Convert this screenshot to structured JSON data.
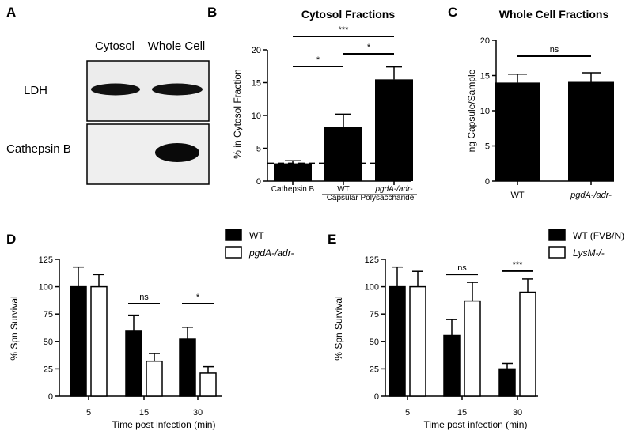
{
  "panels": {
    "A": "A",
    "B": "B",
    "C": "C",
    "D": "D",
    "E": "E"
  },
  "blot": {
    "columns": [
      "Cytosol",
      "Whole Cell"
    ],
    "rows": [
      "LDH",
      "Cathepsin B"
    ]
  },
  "chart_data": [
    {
      "panel": "B",
      "type": "bar",
      "title": "Cytosol Fractions",
      "ylabel": "% in Cytosol Fraction",
      "categories": [
        "Cathepsin B",
        "WT",
        "pgdA-/adr-"
      ],
      "values": [
        2.7,
        8.3,
        15.5
      ],
      "errors": [
        0.4,
        1.9,
        1.9
      ],
      "ylim": [
        0,
        20
      ],
      "yticks": [
        0,
        5,
        10,
        15,
        20
      ],
      "reference_line": 2.7,
      "group_label": "Capsular Polysaccharide",
      "significance": [
        {
          "from": 0,
          "to": 1,
          "label": "*"
        },
        {
          "from": 1,
          "to": 2,
          "label": "*"
        },
        {
          "from": 0,
          "to": 2,
          "label": "***"
        }
      ],
      "colors": {
        "bar": "#000000"
      }
    },
    {
      "panel": "C",
      "type": "bar",
      "title": "Whole Cell Fractions",
      "ylabel": "ng Capsule/Sample",
      "categories": [
        "WT",
        "pgdA-/adr-"
      ],
      "values": [
        14.0,
        14.1
      ],
      "errors": [
        1.2,
        1.3
      ],
      "ylim": [
        0,
        20
      ],
      "yticks": [
        0,
        5,
        10,
        15,
        20
      ],
      "significance": [
        {
          "from": 0,
          "to": 1,
          "label": "ns"
        }
      ],
      "colors": {
        "bar": "#000000"
      }
    },
    {
      "panel": "D",
      "type": "bar",
      "xlabel": "Time post infection (min)",
      "ylabel": "% Spn Survival",
      "categories": [
        "5",
        "15",
        "30"
      ],
      "ylim": [
        0,
        125
      ],
      "yticks": [
        0,
        25,
        50,
        75,
        100,
        125
      ],
      "series": [
        {
          "name": "WT",
          "values": [
            100,
            60,
            52
          ],
          "errors": [
            18,
            14,
            11
          ],
          "fill": "#000000"
        },
        {
          "name": "pgdA-/adr-",
          "values": [
            100,
            32,
            21
          ],
          "errors": [
            11,
            7,
            6
          ],
          "fill": "#ffffff"
        }
      ],
      "significance": [
        {
          "category": 1,
          "label": "ns"
        },
        {
          "category": 2,
          "label": "*"
        }
      ],
      "legend": "top-right"
    },
    {
      "panel": "E",
      "type": "bar",
      "xlabel": "Time post infection (min)",
      "ylabel": "% Spn Survival",
      "categories": [
        "5",
        "15",
        "30"
      ],
      "ylim": [
        0,
        125
      ],
      "yticks": [
        0,
        25,
        50,
        75,
        100,
        125
      ],
      "series": [
        {
          "name": "WT (FVB/N)",
          "values": [
            100,
            56,
            25
          ],
          "errors": [
            18,
            14,
            5
          ],
          "fill": "#000000"
        },
        {
          "name": "LysM-/-",
          "values": [
            100,
            87,
            95
          ],
          "errors": [
            14,
            17,
            12
          ],
          "fill": "#ffffff"
        }
      ],
      "significance": [
        {
          "category": 1,
          "label": "ns"
        },
        {
          "category": 2,
          "label": "***"
        }
      ],
      "legend": "top-right"
    }
  ]
}
